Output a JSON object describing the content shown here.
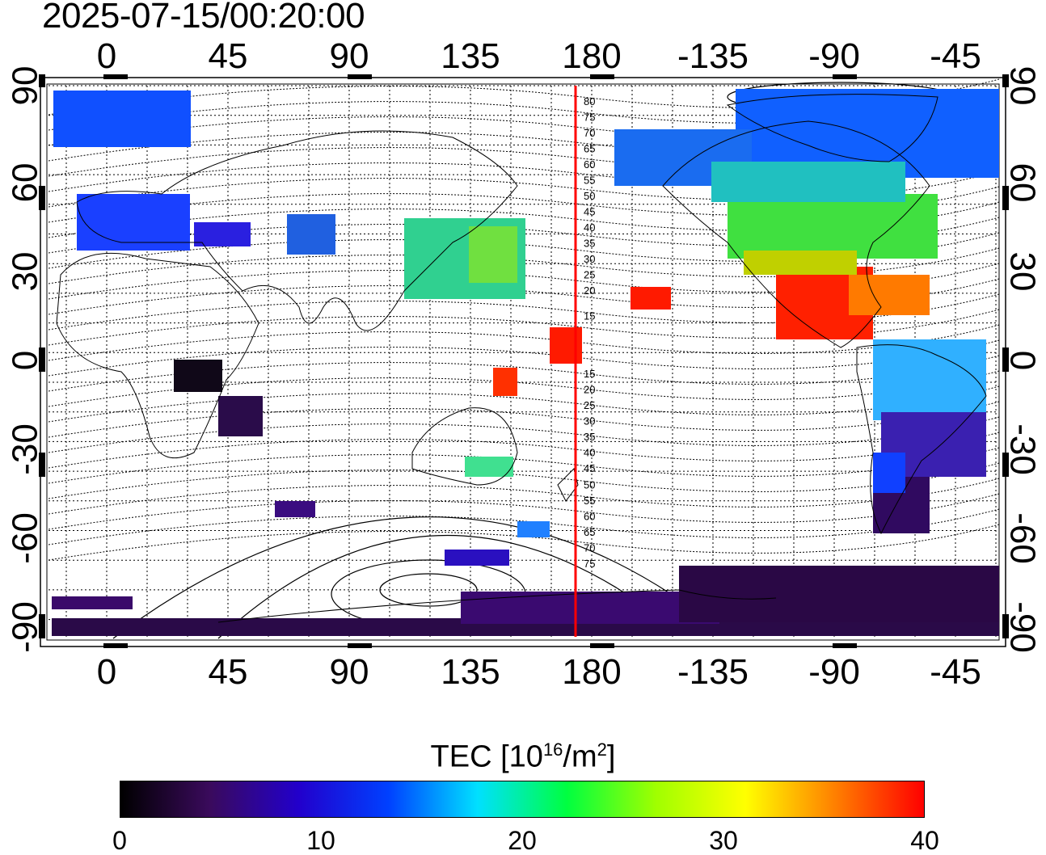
{
  "timestamp": "2025-07-15/00:20:00",
  "map": {
    "lon_ticks_top": [
      "0",
      "45",
      "90",
      "135",
      "180",
      "-135",
      "-90",
      "-45"
    ],
    "lon_ticks_bottom": [
      "0",
      "45",
      "90",
      "135",
      "180",
      "-135",
      "-90",
      "-45"
    ],
    "lat_ticks_left": [
      "90",
      "60",
      "30",
      "0",
      "-30",
      "-60",
      "-90"
    ],
    "lat_ticks_right": [
      "90",
      "60",
      "30",
      "0",
      "-30",
      "-60",
      "-90"
    ],
    "terminator_color": "#ff0000",
    "contour_labels_north": [
      "80",
      "75",
      "70",
      "65",
      "60",
      "55",
      "50",
      "45",
      "40",
      "35",
      "30",
      "25",
      "20",
      "15"
    ],
    "contour_labels_south": [
      "15",
      "20",
      "25",
      "30",
      "35",
      "40",
      "45",
      "50",
      "55",
      "60",
      "65",
      "70",
      "75"
    ]
  },
  "colorbar": {
    "title_main": "TEC  [10",
    "title_exp": "16",
    "title_mid": "/m",
    "title_exp2": "2",
    "title_end": "]",
    "ticks": [
      "0",
      "10",
      "20",
      "30",
      "40"
    ],
    "stops": [
      "#000000",
      "#3a0a5c",
      "#2200cc",
      "#0040ff",
      "#00e0ff",
      "#00ff40",
      "#a0ff00",
      "#ffff00",
      "#ff8000",
      "#ff0000"
    ]
  }
}
